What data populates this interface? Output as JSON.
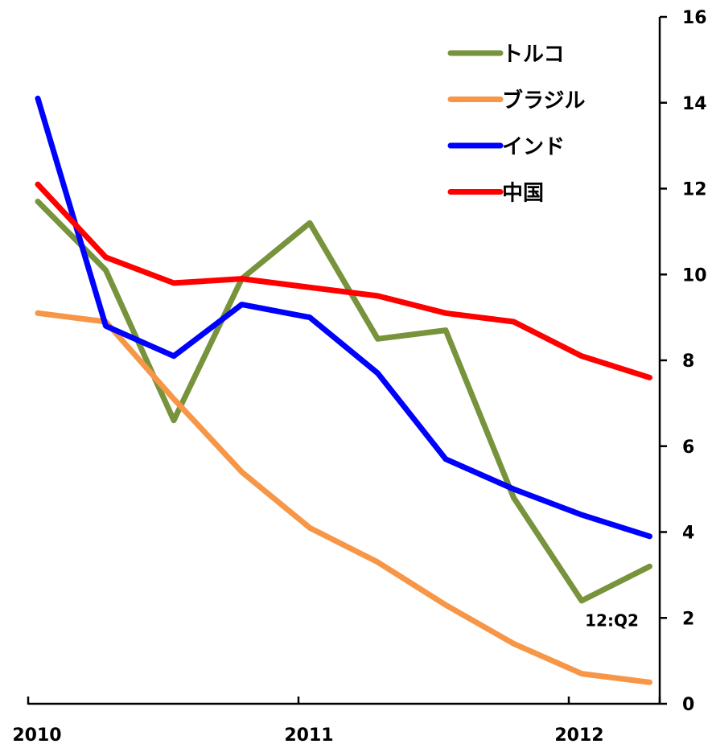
{
  "chart_data": {
    "type": "line",
    "title": "",
    "xlabel": "",
    "ylabel": "",
    "x_labels": [
      "2010",
      "2011",
      "2012"
    ],
    "x": [
      "2010:Q1",
      "2010:Q2",
      "2010:Q3",
      "2010:Q4",
      "2011:Q1",
      "2011:Q2",
      "2011:Q3",
      "2011:Q4",
      "2012:Q1",
      "2012:Q2"
    ],
    "ylim": [
      0,
      16
    ],
    "yticks": [
      "0",
      "2",
      "4",
      "6",
      "8",
      "10",
      "12",
      "14",
      "16"
    ],
    "y_axis_position": "right",
    "grid": false,
    "legend_position": "top-right",
    "series": [
      {
        "name": "トルコ",
        "color": "#77933c",
        "values": [
          11.7,
          10.1,
          6.6,
          9.9,
          11.2,
          8.5,
          8.7,
          4.8,
          2.4,
          3.2
        ]
      },
      {
        "name": "ブラジル",
        "color": "#f79646",
        "values": [
          9.1,
          8.9,
          7.1,
          5.4,
          4.1,
          3.3,
          2.3,
          1.4,
          0.7,
          0.5
        ]
      },
      {
        "name": "インド",
        "color": "#0000ff",
        "values": [
          14.1,
          8.8,
          8.1,
          9.3,
          9.0,
          7.7,
          5.7,
          5.0,
          4.4,
          3.9
        ]
      },
      {
        "name": "中国",
        "color": "#ff0000",
        "values": [
          12.1,
          10.4,
          9.8,
          9.9,
          9.7,
          9.5,
          9.1,
          8.9,
          8.1,
          7.6
        ]
      }
    ],
    "annotations": [
      {
        "text": "12:Q2",
        "x": "2012:Q2",
        "y": 2.0
      }
    ]
  }
}
